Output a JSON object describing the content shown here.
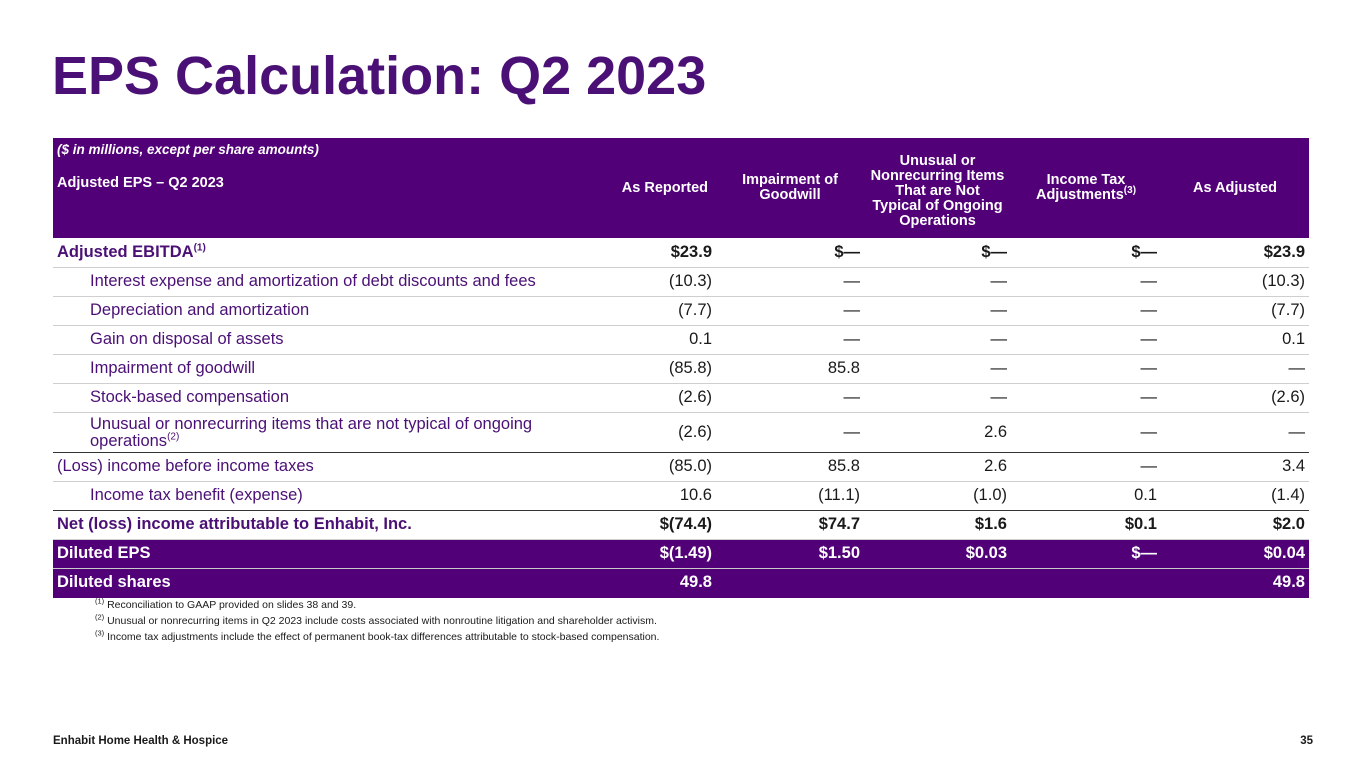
{
  "title": "EPS Calculation: Q2 2023",
  "table": {
    "header_note": "($ in millions, except per share amounts)",
    "header_label": "Adjusted EPS – Q2 2023",
    "columns": [
      "As Reported",
      "Impairment of Goodwill",
      "Unusual or Nonrecurring Items That are Not Typical of Ongoing Operations",
      "Income Tax Adjustments",
      "As Adjusted"
    ],
    "income_tax_footnote": "(3)",
    "rows": [
      {
        "label": "Adjusted EBITDA",
        "footnote": "(1)",
        "values": [
          "$23.9",
          "$—",
          "$—",
          "$—",
          "$23.9"
        ]
      },
      {
        "label": "Interest expense and amortization of debt discounts and fees",
        "values": [
          "(10.3)",
          "—",
          "—",
          "—",
          "(10.3)"
        ]
      },
      {
        "label": "Depreciation and amortization",
        "values": [
          "(7.7)",
          "—",
          "—",
          "—",
          "(7.7)"
        ]
      },
      {
        "label": "Gain on disposal of assets",
        "values": [
          "0.1",
          "—",
          "—",
          "—",
          "0.1"
        ]
      },
      {
        "label": "Impairment of goodwill",
        "values": [
          "(85.8)",
          "85.8",
          "—",
          "—",
          "—"
        ]
      },
      {
        "label": "Stock-based compensation",
        "values": [
          "(2.6)",
          "—",
          "—",
          "—",
          "(2.6)"
        ]
      },
      {
        "label": "Unusual or nonrecurring items that are not typical of ongoing operations",
        "footnote": "(2)",
        "values": [
          "(2.6)",
          "—",
          "2.6",
          "—",
          "—"
        ]
      },
      {
        "label": "(Loss) income before income taxes",
        "values": [
          "(85.0)",
          "85.8",
          "2.6",
          "—",
          "3.4"
        ]
      },
      {
        "label": "Income tax benefit (expense)",
        "values": [
          "10.6",
          "(11.1)",
          "(1.0)",
          "0.1",
          "(1.4)"
        ]
      },
      {
        "label": "Net (loss) income attributable to Enhabit, Inc.",
        "values": [
          "$(74.4)",
          "$74.7",
          "$1.6",
          "$0.1",
          "$2.0"
        ]
      },
      {
        "label": "Diluted EPS",
        "values": [
          "$(1.49)",
          "$1.50",
          "$0.03",
          "$—",
          "$0.04"
        ]
      },
      {
        "label": "Diluted shares",
        "values": [
          "49.8",
          "",
          "",
          "",
          "49.8"
        ]
      }
    ]
  },
  "footnotes": [
    {
      "marker": "(1)",
      "text": " Reconciliation to GAAP provided on slides 38 and 39."
    },
    {
      "marker": "(2)",
      "text": " Unusual or nonrecurring items in Q2 2023 include costs associated with nonroutine litigation and shareholder activism."
    },
    {
      "marker": "(3)",
      "text": " Income tax adjustments include the effect of permanent book-tax differences attributable to stock-based compensation."
    }
  ],
  "footer": {
    "company": "Enhabit Home Health & Hospice",
    "page_number": "35"
  }
}
